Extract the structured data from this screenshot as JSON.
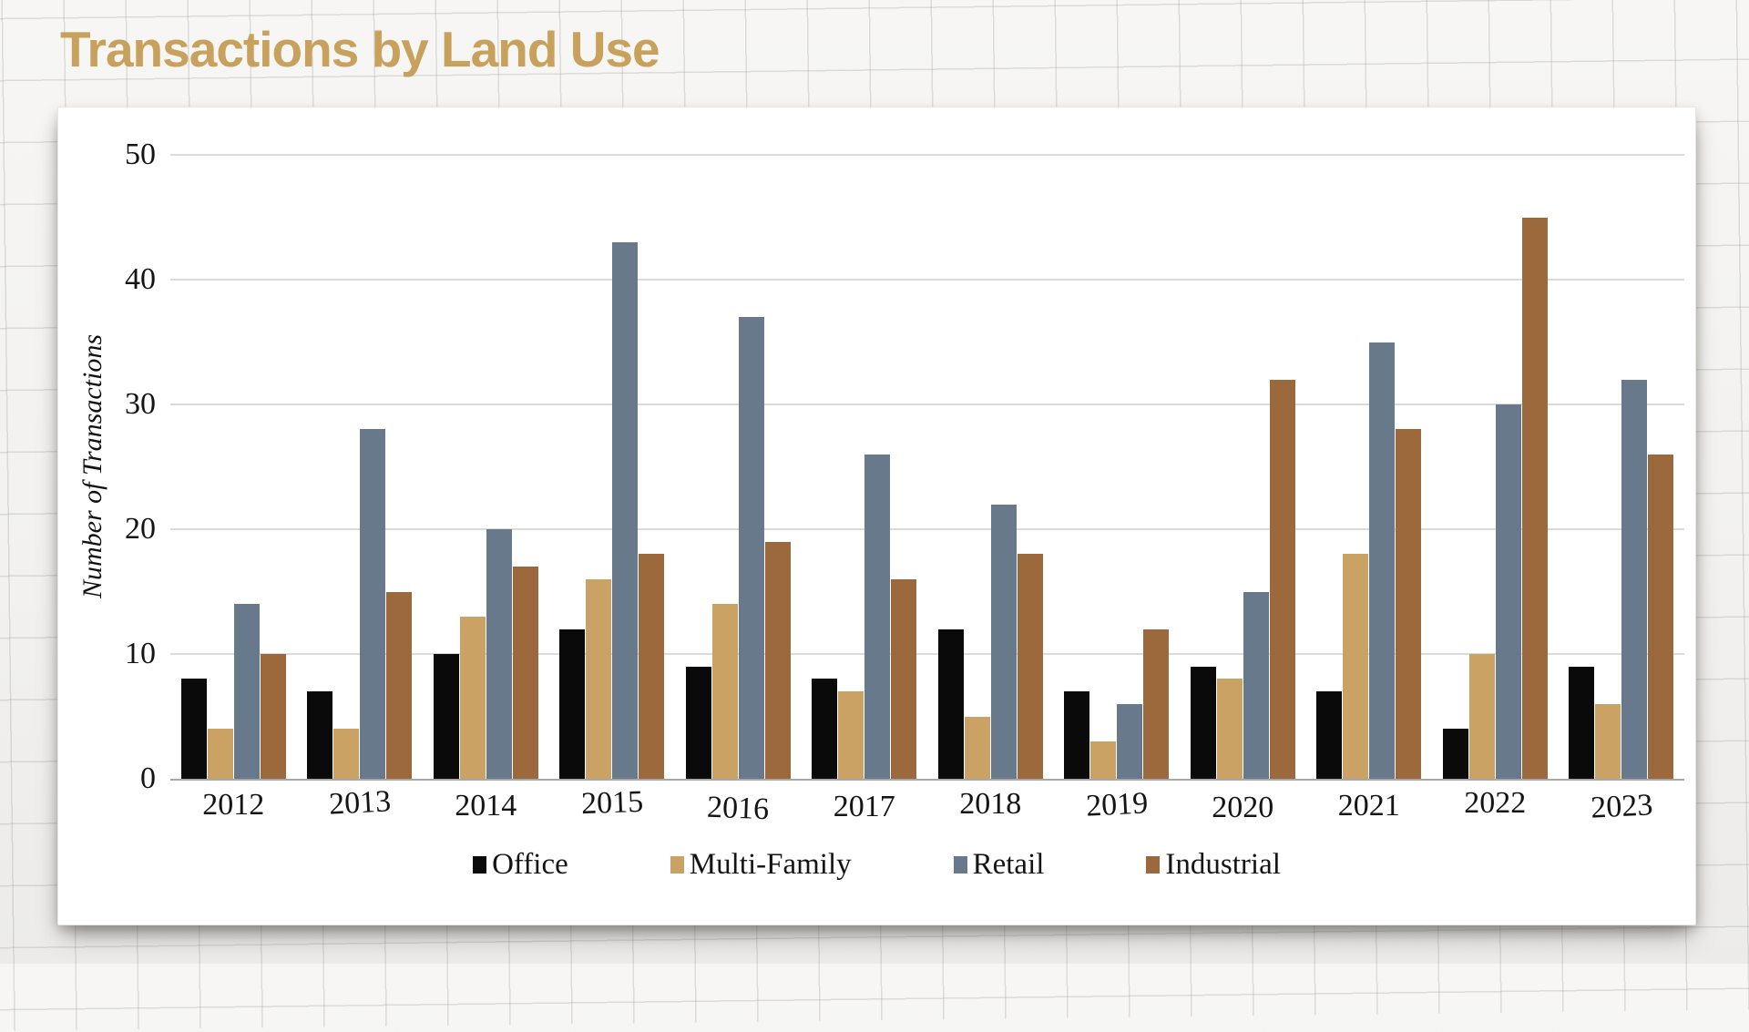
{
  "page": {
    "background": "graph-paper",
    "title_color": "#c8a25c"
  },
  "chart_data": {
    "type": "bar",
    "title": "Transactions by Land Use",
    "xlabel": "",
    "ylabel": "Number of Transactions",
    "ylim": [
      0,
      50
    ],
    "yticks": [
      0,
      10,
      20,
      30,
      40,
      50
    ],
    "grid": true,
    "legend_position": "bottom",
    "categories": [
      "2012",
      "2013",
      "2014",
      "2015",
      "2016",
      "2017",
      "2018",
      "2019",
      "2020",
      "2021",
      "2022",
      "2023"
    ],
    "series": [
      {
        "name": "Office",
        "color": "#0a0a0b",
        "values": [
          8,
          7,
          10,
          12,
          9,
          8,
          12,
          7,
          9,
          7,
          4,
          9
        ]
      },
      {
        "name": "Multi-Family",
        "color": "#c9a264",
        "values": [
          4,
          4,
          13,
          16,
          14,
          7,
          5,
          3,
          8,
          18,
          10,
          6
        ]
      },
      {
        "name": "Retail",
        "color": "#67798a",
        "values": [
          14,
          28,
          20,
          43,
          37,
          26,
          22,
          6,
          15,
          35,
          30,
          32
        ]
      },
      {
        "name": "Industrial",
        "color": "#9c693c",
        "values": [
          10,
          15,
          17,
          18,
          19,
          16,
          18,
          12,
          32,
          28,
          45,
          26
        ]
      }
    ],
    "colors": {
      "gridline": "#dbdbdb",
      "axis_line": "#a8a8a8",
      "text": "#141414",
      "panel_background": "#ffffff"
    }
  }
}
